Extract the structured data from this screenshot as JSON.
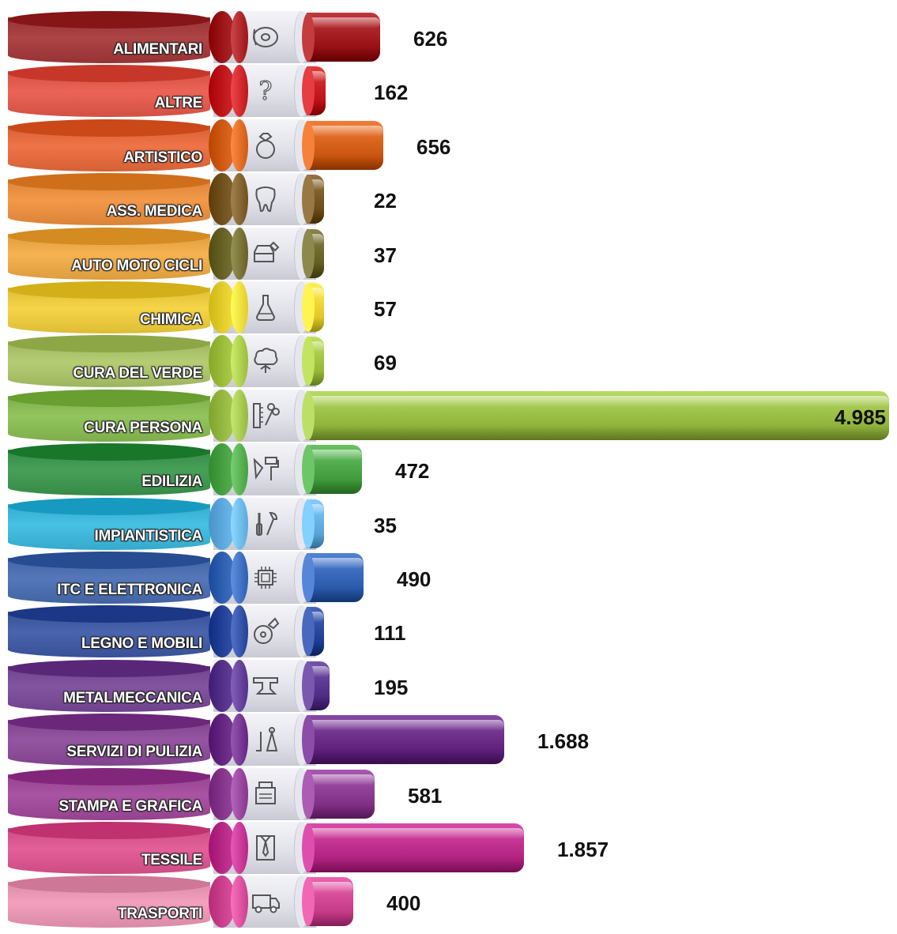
{
  "chart_data": {
    "type": "bar",
    "orientation": "horizontal",
    "categories": [
      "ALIMENTARI",
      "ALTRE",
      "ARTISTICO",
      "ASS. MEDICA",
      "AUTO MOTO CICLI",
      "CHIMICA",
      "CURA DEL VERDE",
      "CURA PERSONA",
      "EDILIZIA",
      "IMPIANTISTICA",
      "ITC E ELETTRONICA",
      "LEGNO E MOBILI",
      "METALMECCANICA",
      "SERVIZI DI PULIZIA",
      "STAMPA E GRAFICA",
      "TESSILE",
      "TRASPORTI"
    ],
    "values": [
      626,
      162,
      656,
      22,
      37,
      57,
      69,
      4985,
      472,
      35,
      490,
      111,
      195,
      1688,
      581,
      1857,
      400
    ],
    "value_labels": [
      "626",
      "162",
      "656",
      "22",
      "37",
      "57",
      "69",
      "4.985",
      "472",
      "35",
      "490",
      "111",
      "195",
      "1.688",
      "581",
      "1.857",
      "400"
    ],
    "icons": [
      "donut-icon",
      "question-mark-icon",
      "ring-icon",
      "tooth-icon",
      "car-wrench-icon",
      "flask-icon",
      "tree-icon",
      "comb-scissors-icon",
      "trowel-roller-icon",
      "screwdriver-wrench-icon",
      "microchip-icon",
      "saw-blade-icon",
      "anvil-icon",
      "vacuum-maid-icon",
      "printer-icon",
      "shirt-tie-icon",
      "truck-icon"
    ],
    "colors": [
      "#a8383a",
      "#ea5a4c",
      "#ee6b3c",
      "#f3923e",
      "#f6ae45",
      "#f6d23c",
      "#b0ca6a",
      "#8cc153",
      "#3c9a4e",
      "#3bbde3",
      "#4a6fb5",
      "#3e5aa8",
      "#7b4a9b",
      "#8e4a9c",
      "#a4499e",
      "#e35592",
      "#f29ab9"
    ],
    "bar_colors": [
      "#a51e22",
      "#c71f23",
      "#d8631d",
      "#7a5a26",
      "#6f6a2e",
      "#ecd634",
      "#a4c644",
      "#9ec14a",
      "#4fa94a",
      "#66b2e6",
      "#3868b9",
      "#2c4aa0",
      "#5c3a92",
      "#6d2f8a",
      "#8f3e95",
      "#c0318f",
      "#d34996"
    ],
    "xlim": [
      0,
      4985
    ]
  }
}
